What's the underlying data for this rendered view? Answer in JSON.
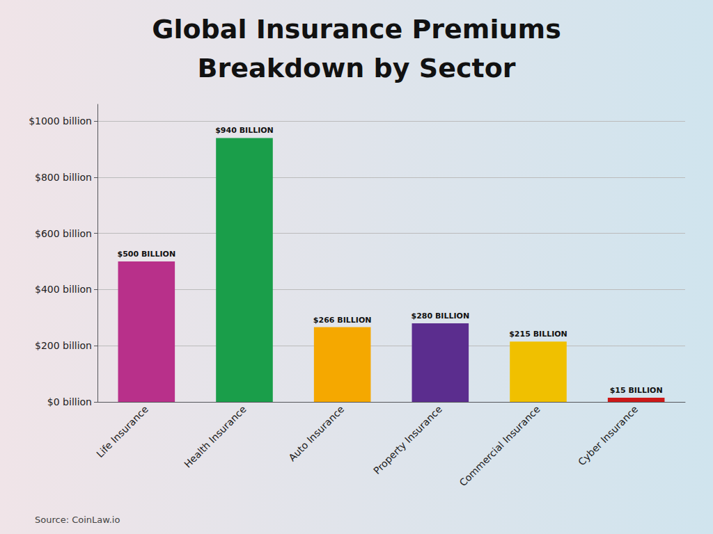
{
  "chart_data": {
    "type": "bar",
    "title": "Global Insurance Premiums",
    "subtitle": "Breakdown by Sector",
    "annotations": [
      "Source: CoinLaw.io"
    ],
    "categories": [
      "Life Insurance",
      "Health Insurance",
      "Auto Insurance",
      "Property Insurance",
      "Commercial Insurance",
      "Cyber Insurance"
    ],
    "values": [
      500,
      940,
      266,
      280,
      215,
      15
    ],
    "value_labels": [
      "$500 BILLION",
      "$940 BILLION",
      "$266 BILLION",
      "$280 BILLION",
      "$215 BILLION",
      "$15 BILLION"
    ],
    "data_labels": true,
    "colors": [
      "#B8308A",
      "#1A9E4A",
      "#F5A800",
      "#5B2D8E",
      "#F0C000",
      "#CC1818"
    ],
    "ylim": [
      0,
      1060
    ],
    "yticks": [
      {
        "value": 0,
        "label": "$0 billion"
      },
      {
        "value": 200,
        "label": "$200 billion"
      },
      {
        "value": 400,
        "label": "$400 billion"
      },
      {
        "value": 600,
        "label": "$600 billion"
      },
      {
        "value": 800,
        "label": "$800 billion"
      },
      {
        "value": 1000,
        "label": "$1000 billion"
      }
    ],
    "grid": true
  }
}
